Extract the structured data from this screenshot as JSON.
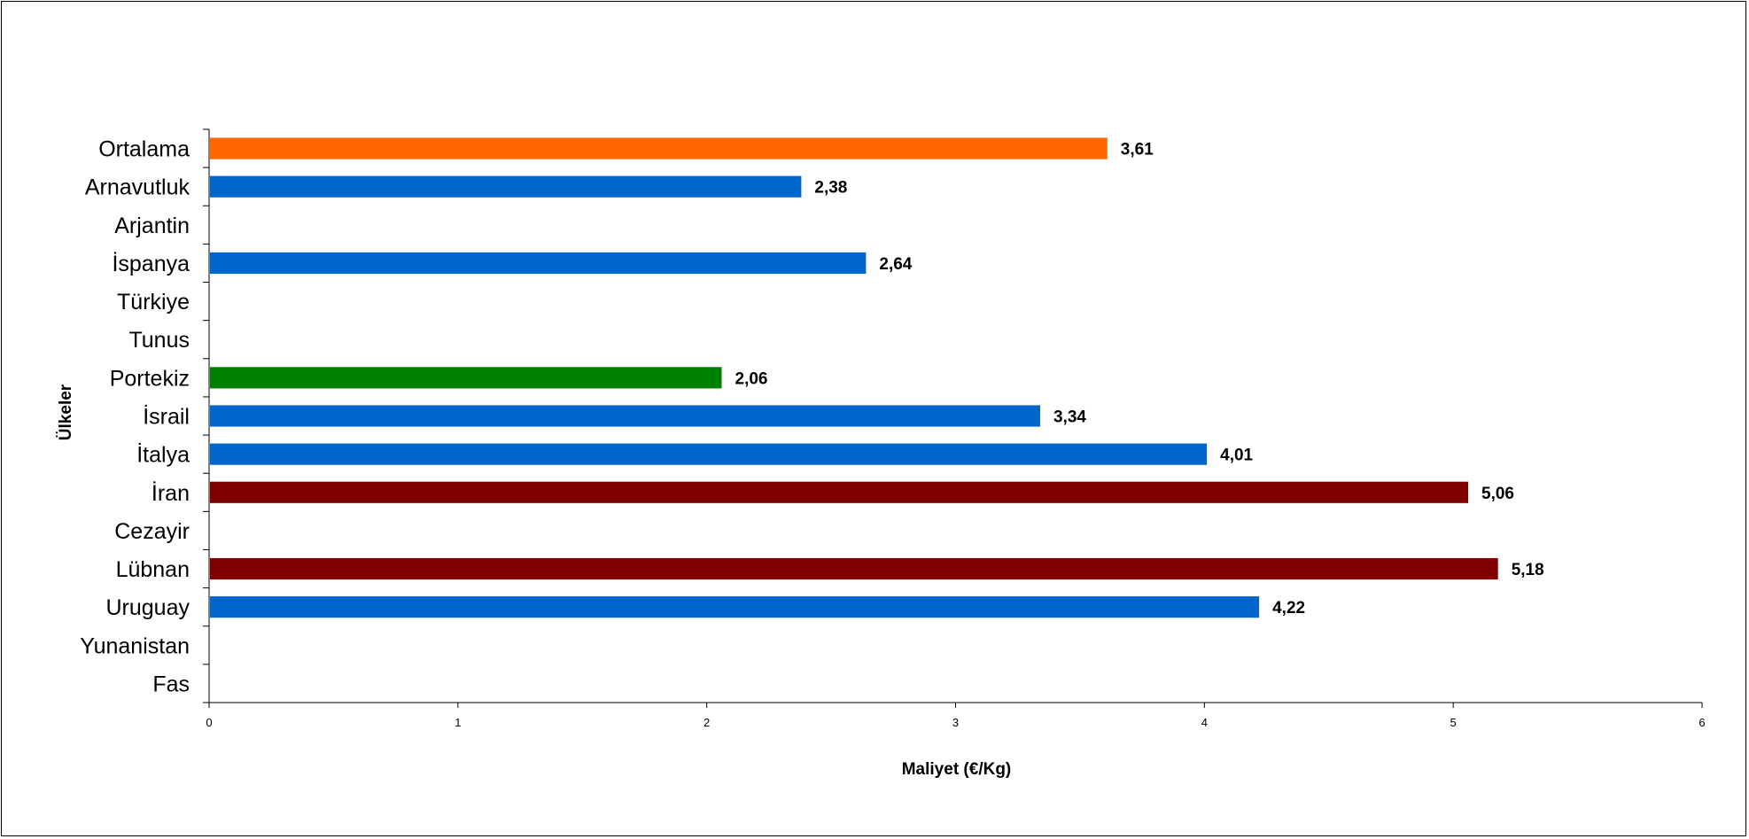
{
  "chart_data": {
    "type": "bar",
    "orientation": "horizontal",
    "title": "",
    "xlabel": "Maliyet (€/Kg)",
    "ylabel": "Ülkeler",
    "xlim": [
      0,
      6
    ],
    "xticks": [
      0,
      1,
      2,
      3,
      4,
      5,
      6
    ],
    "grid": false,
    "legend": "none",
    "categories": [
      "Ortalama",
      "Arnavutluk",
      "Arjantin",
      "İspanya",
      "Türkiye",
      "Tunus",
      "Portekiz",
      "İsrail",
      "İtalya",
      "İran",
      "Cezayir",
      "Lübnan",
      "Uruguay",
      "Yunanistan",
      "Fas"
    ],
    "values": [
      3.61,
      2.38,
      null,
      2.64,
      null,
      null,
      2.06,
      3.34,
      4.01,
      5.06,
      null,
      5.18,
      4.22,
      null,
      null
    ],
    "value_labels": [
      "3,61",
      "2,38",
      "",
      "2,64",
      "",
      "",
      "2,06",
      "3,34",
      "4,01",
      "5,06",
      "",
      "5,18",
      "4,22",
      "",
      ""
    ],
    "colors": [
      "#ff6600",
      "#0066cc",
      "#0066cc",
      "#0066cc",
      "#0066cc",
      "#0066cc",
      "#008000",
      "#0066cc",
      "#0066cc",
      "#800000",
      "#0066cc",
      "#800000",
      "#0066cc",
      "#0066cc",
      "#0066cc"
    ]
  }
}
